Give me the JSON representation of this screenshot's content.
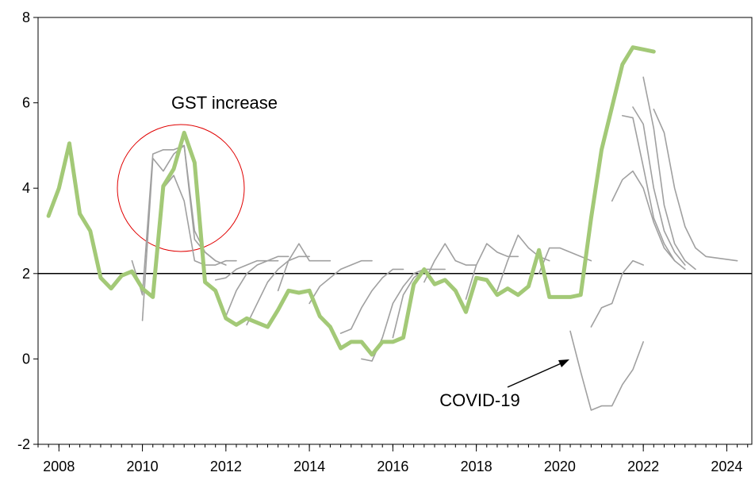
{
  "chart_data": {
    "type": "line",
    "xlim": [
      2007.5,
      2024.6
    ],
    "xticks": [
      2008,
      2010,
      2012,
      2014,
      2016,
      2018,
      2020,
      2022,
      2024
    ],
    "ylim": [
      -2,
      8
    ],
    "yticks": [
      -2,
      0,
      2,
      4,
      6,
      8
    ],
    "hline": 2,
    "annotations": [
      "GST increase",
      "COVID-19"
    ],
    "series": [
      {
        "color": "#a0a0a0",
        "x": [
          2009.75,
          2010.0,
          2010.25,
          2010.5,
          2010.75,
          2011.0,
          2011.25,
          2011.5,
          2011.75
        ],
        "values": [
          2.3,
          1.5,
          4.8,
          4.9,
          4.9,
          5.0,
          2.8,
          2.5,
          2.3
        ]
      },
      {
        "color": "#a0a0a0",
        "x": [
          2010.0,
          2010.25,
          2010.5,
          2010.75,
          2011.0,
          2011.25,
          2011.5,
          2011.75,
          2012.0
        ],
        "values": [
          0.9,
          4.7,
          4.4,
          4.8,
          5.0,
          3.0,
          2.5,
          2.3,
          2.2
        ]
      },
      {
        "color": "#a0a0a0",
        "x": [
          2010.5,
          2010.75,
          2011.0,
          2011.25,
          2011.5,
          2011.75,
          2012.0,
          2012.25
        ],
        "values": [
          4.0,
          4.3,
          3.7,
          2.3,
          2.2,
          2.2,
          2.3,
          2.3
        ]
      },
      {
        "color": "#a0a0a0",
        "x": [
          2011.75,
          2012.0,
          2012.25,
          2012.5,
          2012.75,
          2013.0,
          2013.25
        ],
        "values": [
          1.85,
          1.9,
          2.1,
          2.2,
          2.3,
          2.3,
          2.3
        ]
      },
      {
        "color": "#a0a0a0",
        "x": [
          2012.0,
          2012.25,
          2012.5,
          2012.75,
          2013.0,
          2013.25,
          2013.5
        ],
        "values": [
          1.0,
          1.6,
          2.0,
          2.2,
          2.3,
          2.4,
          2.4
        ]
      },
      {
        "color": "#a0a0a0",
        "x": [
          2012.5,
          2012.75,
          2013.0,
          2013.25,
          2013.5,
          2013.75,
          2014.0
        ],
        "values": [
          0.8,
          1.3,
          1.8,
          2.1,
          2.3,
          2.4,
          2.4
        ]
      },
      {
        "color": "#a0a0a0",
        "x": [
          2013.25,
          2013.5,
          2013.75,
          2014.0,
          2014.25,
          2014.5
        ],
        "values": [
          1.6,
          2.3,
          2.7,
          2.3,
          2.3,
          2.3
        ]
      },
      {
        "color": "#a0a0a0",
        "x": [
          2014.0,
          2014.25,
          2014.5,
          2014.75,
          2015.0,
          2015.25,
          2015.5
        ],
        "values": [
          1.3,
          1.7,
          1.9,
          2.1,
          2.2,
          2.3,
          2.3
        ]
      },
      {
        "color": "#a0a0a0",
        "x": [
          2014.75,
          2015.0,
          2015.25,
          2015.5,
          2015.75,
          2016.0,
          2016.25
        ],
        "values": [
          0.6,
          0.7,
          1.2,
          1.6,
          1.9,
          2.1,
          2.1
        ]
      },
      {
        "color": "#a0a0a0",
        "x": [
          2015.25,
          2015.5,
          2015.75,
          2016.0,
          2016.25,
          2016.5,
          2016.75
        ],
        "values": [
          0.0,
          -0.05,
          0.5,
          1.3,
          1.7,
          2.0,
          2.1
        ]
      },
      {
        "color": "#a0a0a0",
        "x": [
          2016.0,
          2016.25,
          2016.5,
          2016.75,
          2017.0,
          2017.25
        ],
        "values": [
          0.5,
          1.5,
          1.9,
          2.1,
          2.1,
          2.1
        ]
      },
      {
        "color": "#a0a0a0",
        "x": [
          2016.75,
          2017.0,
          2017.25,
          2017.5,
          2017.75,
          2018.0
        ],
        "values": [
          1.8,
          2.3,
          2.7,
          2.3,
          2.2,
          2.2
        ]
      },
      {
        "color": "#a0a0a0",
        "x": [
          2017.75,
          2018.0,
          2018.25,
          2018.5,
          2018.75,
          2019.0
        ],
        "values": [
          1.4,
          2.2,
          2.7,
          2.5,
          2.4,
          2.4
        ]
      },
      {
        "color": "#a0a0a0",
        "x": [
          2018.5,
          2018.75,
          2019.0,
          2019.25,
          2019.5,
          2019.75
        ],
        "values": [
          1.6,
          2.3,
          2.9,
          2.6,
          2.4,
          2.3
        ]
      },
      {
        "color": "#a0a0a0",
        "x": [
          2019.5,
          2019.75,
          2020.0,
          2020.25,
          2020.5,
          2020.75
        ],
        "values": [
          2.0,
          2.6,
          2.6,
          2.5,
          2.4,
          2.3
        ]
      },
      {
        "color": "#a0a0a0",
        "x": [
          2020.25,
          2020.5,
          2020.75,
          2021.0,
          2021.25,
          2021.5,
          2021.75,
          2022.0
        ],
        "values": [
          0.65,
          -0.3,
          -1.2,
          -1.1,
          -1.1,
          -0.6,
          -0.25,
          0.4
        ]
      },
      {
        "color": "#a0a0a0",
        "x": [
          2020.75,
          2021.0,
          2021.25,
          2021.5,
          2021.75,
          2022.0
        ],
        "values": [
          0.75,
          1.2,
          1.3,
          2.0,
          2.3,
          2.2
        ]
      },
      {
        "color": "#a0a0a0",
        "x": [
          2021.25,
          2021.5,
          2021.75,
          2022.0,
          2022.25,
          2022.5,
          2022.75
        ],
        "values": [
          3.7,
          4.2,
          4.4,
          4.0,
          3.2,
          2.6,
          2.3
        ]
      },
      {
        "color": "#a0a0a0",
        "x": [
          2021.5,
          2021.75,
          2022.0,
          2022.25,
          2022.5,
          2022.75,
          2023.0
        ],
        "values": [
          5.7,
          5.65,
          4.5,
          3.3,
          2.7,
          2.3,
          2.1
        ]
      },
      {
        "color": "#a0a0a0",
        "x": [
          2021.75,
          2022.0,
          2022.25,
          2022.5,
          2022.75,
          2023.0
        ],
        "values": [
          5.9,
          5.5,
          4.0,
          3.0,
          2.5,
          2.2
        ]
      },
      {
        "color": "#a0a0a0",
        "x": [
          2022.0,
          2022.25,
          2022.5,
          2022.75,
          2023.0,
          2023.25
        ],
        "values": [
          6.6,
          5.4,
          3.6,
          2.7,
          2.3,
          2.1
        ]
      },
      {
        "color": "#a0a0a0",
        "x": [
          2022.25,
          2022.5,
          2022.75,
          2023.0,
          2023.25,
          2023.5,
          2024.25
        ],
        "values": [
          5.85,
          5.3,
          4.0,
          3.1,
          2.6,
          2.4,
          2.3
        ]
      },
      {
        "color": "#a3c977",
        "x": [
          2007.75,
          2008.0,
          2008.25,
          2008.5,
          2008.75,
          2009.0,
          2009.25,
          2009.5,
          2009.75,
          2010.0,
          2010.25,
          2010.5,
          2010.75,
          2011.0,
          2011.25,
          2011.5,
          2011.75,
          2012.0,
          2012.25,
          2012.5,
          2012.75,
          2013.0,
          2013.25,
          2013.5,
          2013.75,
          2014.0,
          2014.25,
          2014.5,
          2014.75,
          2015.0,
          2015.25,
          2015.5,
          2015.75,
          2016.0,
          2016.25,
          2016.5,
          2016.75,
          2017.0,
          2017.25,
          2017.5,
          2017.75,
          2018.0,
          2018.25,
          2018.5,
          2018.75,
          2019.0,
          2019.25,
          2019.5,
          2019.75,
          2020.0,
          2020.25,
          2020.5,
          2020.75,
          2021.0,
          2021.25,
          2021.5,
          2021.75,
          2022.0,
          2022.25
        ],
        "values": [
          3.35,
          4.0,
          5.05,
          3.4,
          3.0,
          1.9,
          1.65,
          1.95,
          2.05,
          1.65,
          1.45,
          4.05,
          4.45,
          5.3,
          4.6,
          1.8,
          1.6,
          0.95,
          0.8,
          0.95,
          0.85,
          0.75,
          1.15,
          1.6,
          1.55,
          1.6,
          1.0,
          0.75,
          0.25,
          0.4,
          0.4,
          0.1,
          0.4,
          0.4,
          0.5,
          1.75,
          2.1,
          1.75,
          1.85,
          1.6,
          1.1,
          1.9,
          1.85,
          1.5,
          1.65,
          1.5,
          1.7,
          2.55,
          1.45,
          1.45,
          1.45,
          1.5,
          3.3,
          4.9,
          5.9,
          6.9,
          7.3,
          7.25,
          7.2
        ]
      }
    ]
  }
}
